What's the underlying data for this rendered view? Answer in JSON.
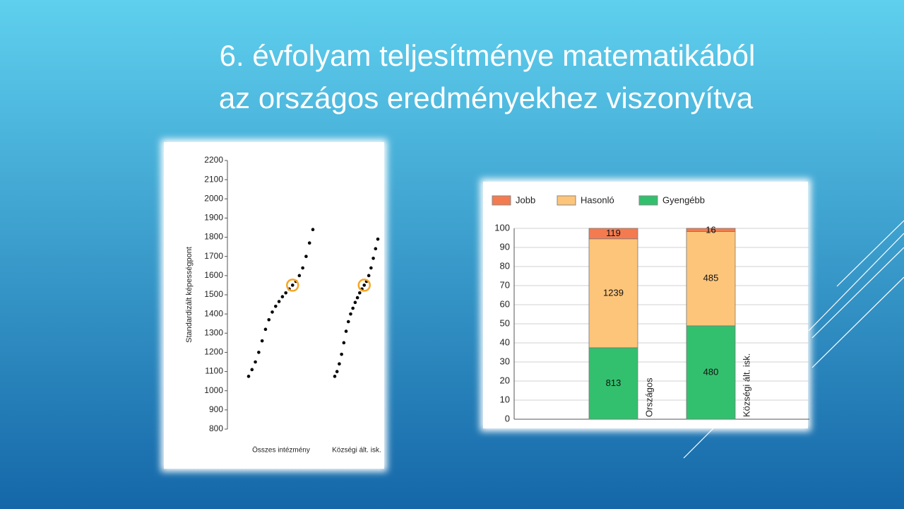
{
  "title_lines": [
    "6. évfolyam teljesítménye matematikából",
    "az országos eredményekhez viszonyítva"
  ],
  "chart_data": [
    {
      "type": "strip",
      "y_label": "Standardizált képességpont",
      "categories": [
        "Összes intézmény",
        "Községi ált. isk."
      ],
      "values": [
        [
          1075,
          1110,
          1150,
          1200,
          1260,
          1320,
          1370,
          1410,
          1440,
          1465,
          1490,
          1510,
          1530,
          1550,
          1570,
          1600,
          1640,
          1700,
          1770,
          1840
        ],
        [
          1075,
          1100,
          1140,
          1190,
          1250,
          1310,
          1360,
          1400,
          1430,
          1460,
          1485,
          1510,
          1530,
          1550,
          1570,
          1600,
          1640,
          1690,
          1740,
          1790
        ]
      ],
      "color": "#000000",
      "highlight_values": [
        1550,
        1550
      ],
      "highlight_color": "#f5a623",
      "ylim": [
        800,
        2200
      ],
      "yticks": [
        800,
        900,
        1000,
        1100,
        1200,
        1300,
        1400,
        1500,
        1600,
        1700,
        1800,
        1900,
        2000,
        2100,
        2200
      ]
    },
    {
      "type": "bar",
      "stacked": "percent",
      "categories": [
        "Országos",
        "Községi ált. isk."
      ],
      "series": [
        {
          "name": "Jobb",
          "color": "#f47b4f",
          "values": [
            119,
            16
          ]
        },
        {
          "name": "Hasonló",
          "color": "#fdc57a",
          "values": [
            1239,
            485
          ]
        },
        {
          "name": "Gyengébb",
          "color": "#33c06e",
          "values": [
            813,
            480
          ]
        }
      ],
      "ylim": [
        0,
        100
      ],
      "yticks": [
        0,
        10,
        20,
        30,
        40,
        50,
        60,
        70,
        80,
        90,
        100
      ],
      "grid": true,
      "legend": "top-left"
    }
  ]
}
